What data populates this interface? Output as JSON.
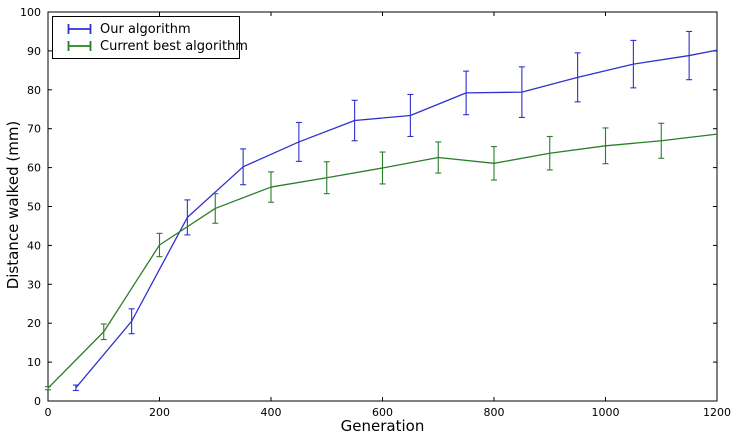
{
  "figure": {
    "background": "#ffffff",
    "axis_color": "#000000"
  },
  "chart_data": {
    "type": "line",
    "title": "",
    "xlabel": "Generation",
    "ylabel": "Distance walked (mm)",
    "xlim": [
      0,
      1200
    ],
    "ylim": [
      0,
      100
    ],
    "xticks": [
      0,
      200,
      400,
      600,
      800,
      1000,
      1200
    ],
    "yticks": [
      0,
      10,
      20,
      30,
      40,
      50,
      60,
      70,
      80,
      90,
      100
    ],
    "grid": false,
    "legend_position": "upper left",
    "error_bars": true,
    "series": [
      {
        "name": "Our algorithm",
        "color": "#3030d0",
        "x": [
          50,
          150,
          250,
          350,
          450,
          550,
          650,
          750,
          850,
          950,
          1050,
          1150,
          1200
        ],
        "y": [
          3.4,
          20.5,
          47.2,
          60.2,
          66.6,
          72.1,
          73.4,
          79.2,
          79.4,
          83.2,
          86.6,
          88.8,
          90.2
        ],
        "yerr": [
          0.7,
          3.2,
          4.5,
          4.6,
          5.0,
          5.2,
          5.4,
          5.6,
          6.5,
          6.3,
          6.1,
          6.2,
          0
        ]
      },
      {
        "name": "Current best algorithm",
        "color": "#2a7e2a",
        "x": [
          0,
          100,
          200,
          300,
          400,
          500,
          600,
          700,
          800,
          900,
          1000,
          1100,
          1200
        ],
        "y": [
          3.3,
          17.8,
          40.1,
          49.5,
          55.0,
          57.4,
          59.9,
          62.6,
          61.1,
          63.7,
          65.6,
          66.9,
          68.6
        ],
        "yerr": [
          0.4,
          2.0,
          3.0,
          3.8,
          3.9,
          4.1,
          4.1,
          4.0,
          4.3,
          4.3,
          4.6,
          4.5,
          0
        ]
      }
    ]
  }
}
